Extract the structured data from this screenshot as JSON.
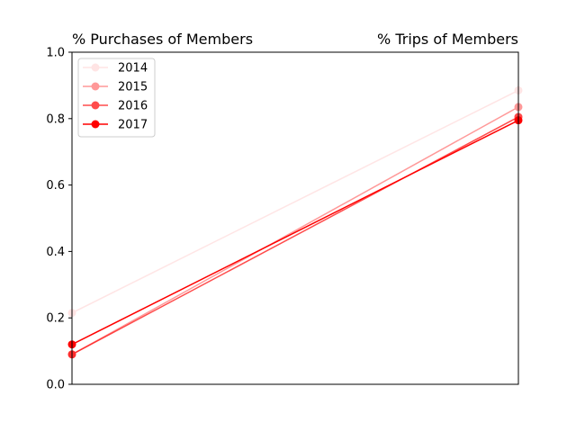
{
  "chart_data": {
    "type": "line",
    "title_left": "% Purchases of Members",
    "title_right": "% Trips of Members",
    "x": [
      0,
      1
    ],
    "xlim": [
      0,
      1
    ],
    "ylim": [
      0.0,
      1.0
    ],
    "yticks": [
      "0.0",
      "0.2",
      "0.4",
      "0.6",
      "0.8",
      "1.0"
    ],
    "ytick_values": [
      0.0,
      0.2,
      0.4,
      0.6,
      0.8,
      1.0
    ],
    "grid": false,
    "legend_position": "top-left",
    "series": [
      {
        "name": "2014",
        "values": [
          0.215,
          0.885
        ],
        "color": "#ff0000",
        "opacity": 0.1
      },
      {
        "name": "2015",
        "values": [
          0.09,
          0.835
        ],
        "color": "#ff0000",
        "opacity": 0.4
      },
      {
        "name": "2016",
        "values": [
          0.09,
          0.805
        ],
        "color": "#ff0000",
        "opacity": 0.7
      },
      {
        "name": "2017",
        "values": [
          0.12,
          0.795
        ],
        "color": "#ff0000",
        "opacity": 1.0
      }
    ]
  }
}
